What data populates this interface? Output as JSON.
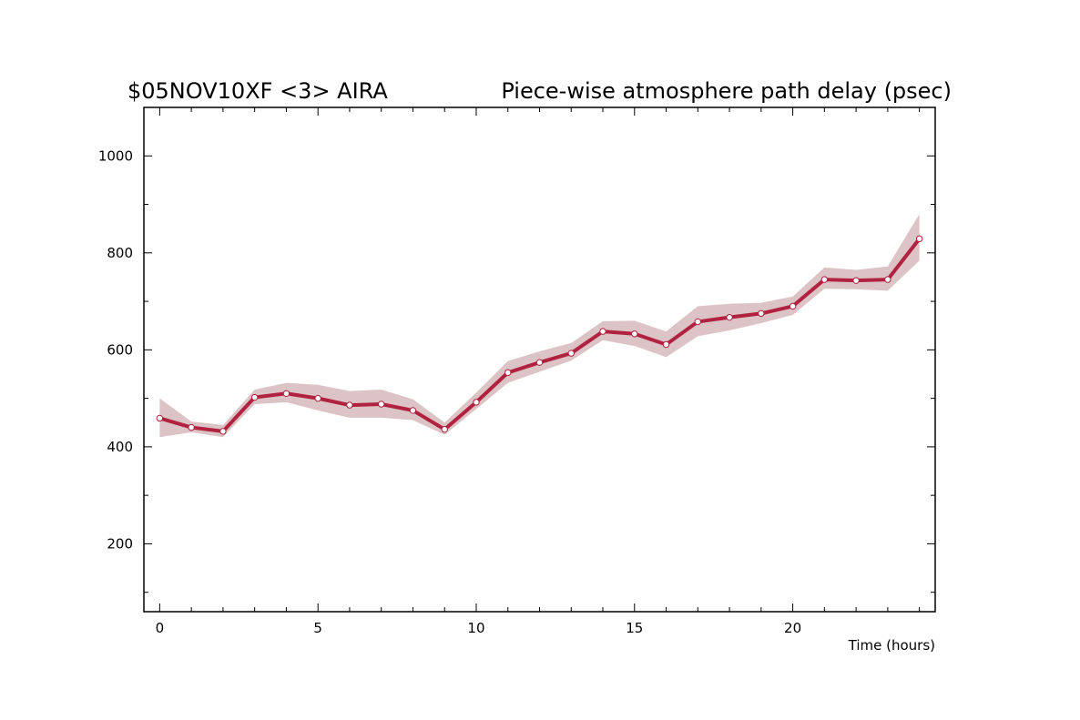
{
  "chart_data": {
    "type": "line",
    "title_left": "$05NOV10XF <3>  AIRA",
    "title_right": "Piece-wise atmosphere path delay (psec)",
    "xlabel": "Time (hours)",
    "ylabel": "",
    "xlim": [
      -0.5,
      24.5
    ],
    "ylim": [
      60,
      1100
    ],
    "x_ticks": [
      0,
      5,
      10,
      15,
      20
    ],
    "x_tick_labels": [
      "0",
      "5",
      "10",
      "15",
      "20"
    ],
    "y_ticks": [
      200,
      400,
      600,
      800,
      1000
    ],
    "y_tick_labels": [
      "200",
      "400",
      "600",
      "800",
      "1000"
    ],
    "grid": false,
    "colors": {
      "line": "#b0223f",
      "band": "#dcc3c6",
      "marker_fill": "#ffffff",
      "axis": "#000000"
    },
    "series": [
      {
        "x": [
          0,
          1,
          2,
          3,
          4,
          5,
          6,
          7,
          8,
          9,
          10,
          11,
          12,
          13,
          14,
          15,
          16,
          17,
          18,
          19,
          20,
          21,
          22,
          23,
          24
        ],
        "values": [
          459,
          440,
          432,
          502,
          510,
          500,
          486,
          488,
          475,
          436,
          492,
          553,
          574,
          593,
          638,
          633,
          611,
          658,
          667,
          675,
          690,
          745,
          743,
          745,
          829
        ],
        "upper": [
          500,
          452,
          445,
          518,
          532,
          528,
          515,
          518,
          498,
          450,
          512,
          577,
          597,
          614,
          659,
          660,
          638,
          690,
          695,
          697,
          710,
          770,
          765,
          772,
          880
        ],
        "lower": [
          420,
          430,
          420,
          488,
          492,
          475,
          460,
          460,
          455,
          425,
          478,
          532,
          555,
          578,
          620,
          608,
          585,
          628,
          640,
          655,
          672,
          726,
          725,
          722,
          784
        ]
      }
    ]
  }
}
